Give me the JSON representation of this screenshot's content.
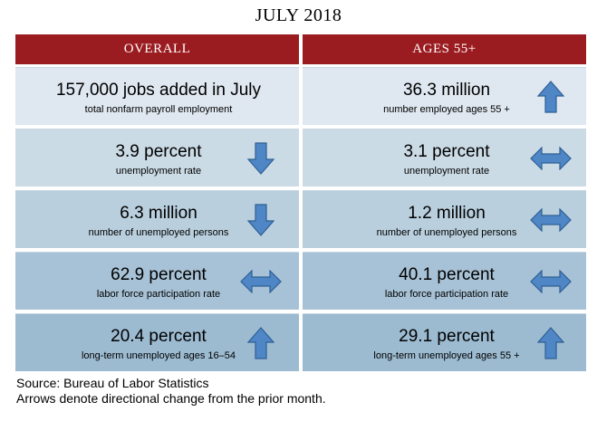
{
  "title": "JULY 2018",
  "headers": {
    "overall": "OVERALL",
    "ages55": "AGES 55+"
  },
  "colors": {
    "header_bg": "#9b1c20",
    "row_bgs": [
      "#dfe7f0",
      "#cbdbe6",
      "#b9cfde",
      "#a7c2d6",
      "#9cbbd1"
    ],
    "arrow_fill": "#4f86c6",
    "arrow_stroke": "#2f5f93"
  },
  "rows": [
    {
      "overall": {
        "value": "157,000 jobs added in July",
        "label": "total nonfarm payroll employment",
        "arrow": "none"
      },
      "ages55": {
        "value": "36.3 million",
        "label": "number employed ages 55 +",
        "arrow": "up"
      }
    },
    {
      "overall": {
        "value": "3.9 percent",
        "label": "unemployment rate",
        "arrow": "down"
      },
      "ages55": {
        "value": "3.1 percent",
        "label": "unemployment rate",
        "arrow": "both"
      }
    },
    {
      "overall": {
        "value": "6.3 million",
        "label": "number of unemployed persons",
        "arrow": "down"
      },
      "ages55": {
        "value": "1.2 million",
        "label": "number of unemployed persons",
        "arrow": "both"
      }
    },
    {
      "overall": {
        "value": "62.9 percent",
        "label": "labor force participation rate",
        "arrow": "both"
      },
      "ages55": {
        "value": "40.1 percent",
        "label": "labor force participation rate",
        "arrow": "both"
      }
    },
    {
      "overall": {
        "value": "20.4 percent",
        "label": "long-term unemployed ages 16–54",
        "arrow": "up"
      },
      "ages55": {
        "value": "29.1 percent",
        "label": "long-term unemployed ages 55 +",
        "arrow": "up"
      }
    }
  ],
  "footer": {
    "source": "Source: Bureau of Labor Statistics",
    "note": "Arrows denote directional change from the prior month."
  }
}
